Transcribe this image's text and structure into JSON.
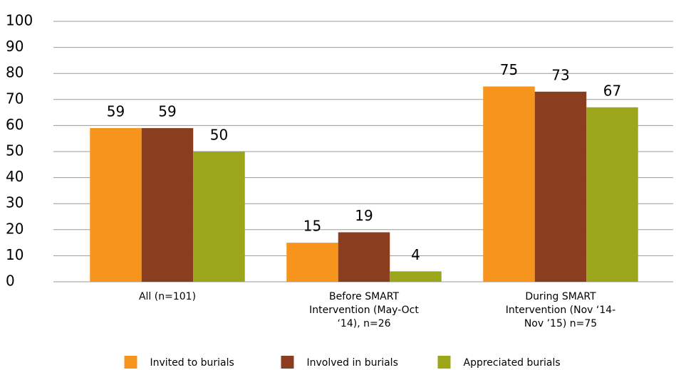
{
  "chart_data": {
    "type": "bar",
    "categories": [
      "All (n=101)",
      "Before SMART Intervention (May-Oct ‘14), n=26",
      "During SMART Intervention (Nov ‘14-Nov ’15) n=75"
    ],
    "series": [
      {
        "name": "Invited to burials",
        "color": "#f7941d",
        "values": [
          59,
          15,
          75
        ]
      },
      {
        "name": "Involved in burials",
        "color": "#8b3e1f",
        "values": [
          59,
          19,
          73
        ]
      },
      {
        "name": "Appreciated burials",
        "color": "#9ba61b",
        "values": [
          50,
          4,
          67
        ]
      }
    ],
    "ylim": [
      0,
      100
    ],
    "yticks": [
      0,
      10,
      20,
      30,
      40,
      50,
      60,
      70,
      80,
      90,
      100
    ],
    "grid": true,
    "legend": "bottom"
  }
}
